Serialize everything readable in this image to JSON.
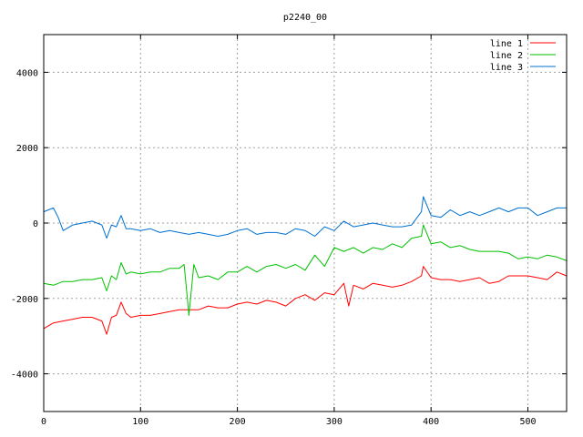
{
  "chart_data": {
    "type": "line",
    "title": "p2240_00",
    "xlabel": "",
    "ylabel": "",
    "xlim": [
      0,
      540
    ],
    "ylim": [
      -5000,
      5000
    ],
    "xticks": [
      0,
      100,
      200,
      300,
      400,
      500
    ],
    "yticks": [
      -4000,
      -2000,
      0,
      2000,
      4000
    ],
    "grid": true,
    "legend_position": "top-right",
    "series": [
      {
        "name": "line 1",
        "color": "#ff0000",
        "x": [
          0,
          10,
          20,
          30,
          40,
          50,
          60,
          65,
          70,
          75,
          80,
          85,
          90,
          100,
          110,
          120,
          130,
          140,
          150,
          160,
          170,
          180,
          190,
          200,
          210,
          220,
          230,
          240,
          250,
          260,
          270,
          280,
          290,
          300,
          310,
          315,
          320,
          330,
          340,
          350,
          360,
          370,
          380,
          390,
          392,
          400,
          410,
          420,
          430,
          440,
          450,
          460,
          470,
          480,
          490,
          500,
          510,
          520,
          530,
          540
        ],
        "y": [
          -2800,
          -2650,
          -2600,
          -2550,
          -2500,
          -2500,
          -2600,
          -2950,
          -2500,
          -2450,
          -2100,
          -2400,
          -2500,
          -2450,
          -2450,
          -2400,
          -2350,
          -2300,
          -2300,
          -2300,
          -2200,
          -2250,
          -2250,
          -2150,
          -2100,
          -2150,
          -2050,
          -2100,
          -2200,
          -2000,
          -1900,
          -2050,
          -1850,
          -1900,
          -1600,
          -2200,
          -1650,
          -1750,
          -1600,
          -1650,
          -1700,
          -1650,
          -1550,
          -1400,
          -1150,
          -1450,
          -1500,
          -1500,
          -1550,
          -1500,
          -1450,
          -1600,
          -1550,
          -1400,
          -1400,
          -1400,
          -1450,
          -1500,
          -1300,
          -1400
        ]
      },
      {
        "name": "line 2",
        "color": "#00c000",
        "x": [
          0,
          10,
          20,
          30,
          40,
          50,
          60,
          65,
          70,
          75,
          80,
          85,
          90,
          100,
          110,
          120,
          130,
          140,
          145,
          148,
          150,
          155,
          160,
          170,
          180,
          190,
          200,
          210,
          220,
          230,
          240,
          250,
          260,
          270,
          280,
          290,
          300,
          310,
          320,
          330,
          340,
          350,
          360,
          370,
          380,
          390,
          392,
          400,
          410,
          420,
          430,
          440,
          450,
          460,
          470,
          480,
          490,
          500,
          510,
          520,
          530,
          540
        ],
        "y": [
          -1600,
          -1650,
          -1550,
          -1550,
          -1500,
          -1500,
          -1450,
          -1800,
          -1400,
          -1500,
          -1050,
          -1350,
          -1300,
          -1350,
          -1300,
          -1300,
          -1200,
          -1200,
          -1100,
          -1900,
          -2450,
          -1100,
          -1450,
          -1400,
          -1500,
          -1300,
          -1300,
          -1150,
          -1300,
          -1150,
          -1100,
          -1200,
          -1100,
          -1250,
          -850,
          -1150,
          -650,
          -750,
          -650,
          -800,
          -650,
          -700,
          -550,
          -650,
          -400,
          -350,
          -50,
          -550,
          -500,
          -650,
          -600,
          -700,
          -750,
          -750,
          -750,
          -800,
          -950,
          -900,
          -950,
          -850,
          -900,
          -1000
        ]
      },
      {
        "name": "line 3",
        "color": "#0070d0",
        "x": [
          0,
          10,
          15,
          20,
          30,
          40,
          50,
          60,
          65,
          70,
          75,
          80,
          85,
          90,
          100,
          110,
          120,
          130,
          140,
          150,
          160,
          170,
          180,
          190,
          200,
          210,
          220,
          230,
          240,
          250,
          260,
          270,
          280,
          290,
          300,
          310,
          320,
          330,
          340,
          350,
          360,
          370,
          380,
          390,
          392,
          400,
          410,
          420,
          430,
          440,
          450,
          460,
          470,
          480,
          490,
          500,
          510,
          520,
          530,
          540
        ],
        "y": [
          300,
          400,
          150,
          -200,
          -50,
          0,
          50,
          -50,
          -400,
          -50,
          -100,
          200,
          -150,
          -150,
          -200,
          -150,
          -250,
          -200,
          -250,
          -300,
          -250,
          -300,
          -350,
          -300,
          -200,
          -150,
          -300,
          -250,
          -250,
          -300,
          -150,
          -200,
          -350,
          -100,
          -200,
          50,
          -100,
          -50,
          0,
          -50,
          -100,
          -100,
          -50,
          300,
          700,
          200,
          150,
          350,
          200,
          300,
          200,
          300,
          400,
          300,
          400,
          400,
          200,
          300,
          400,
          400
        ]
      }
    ]
  }
}
